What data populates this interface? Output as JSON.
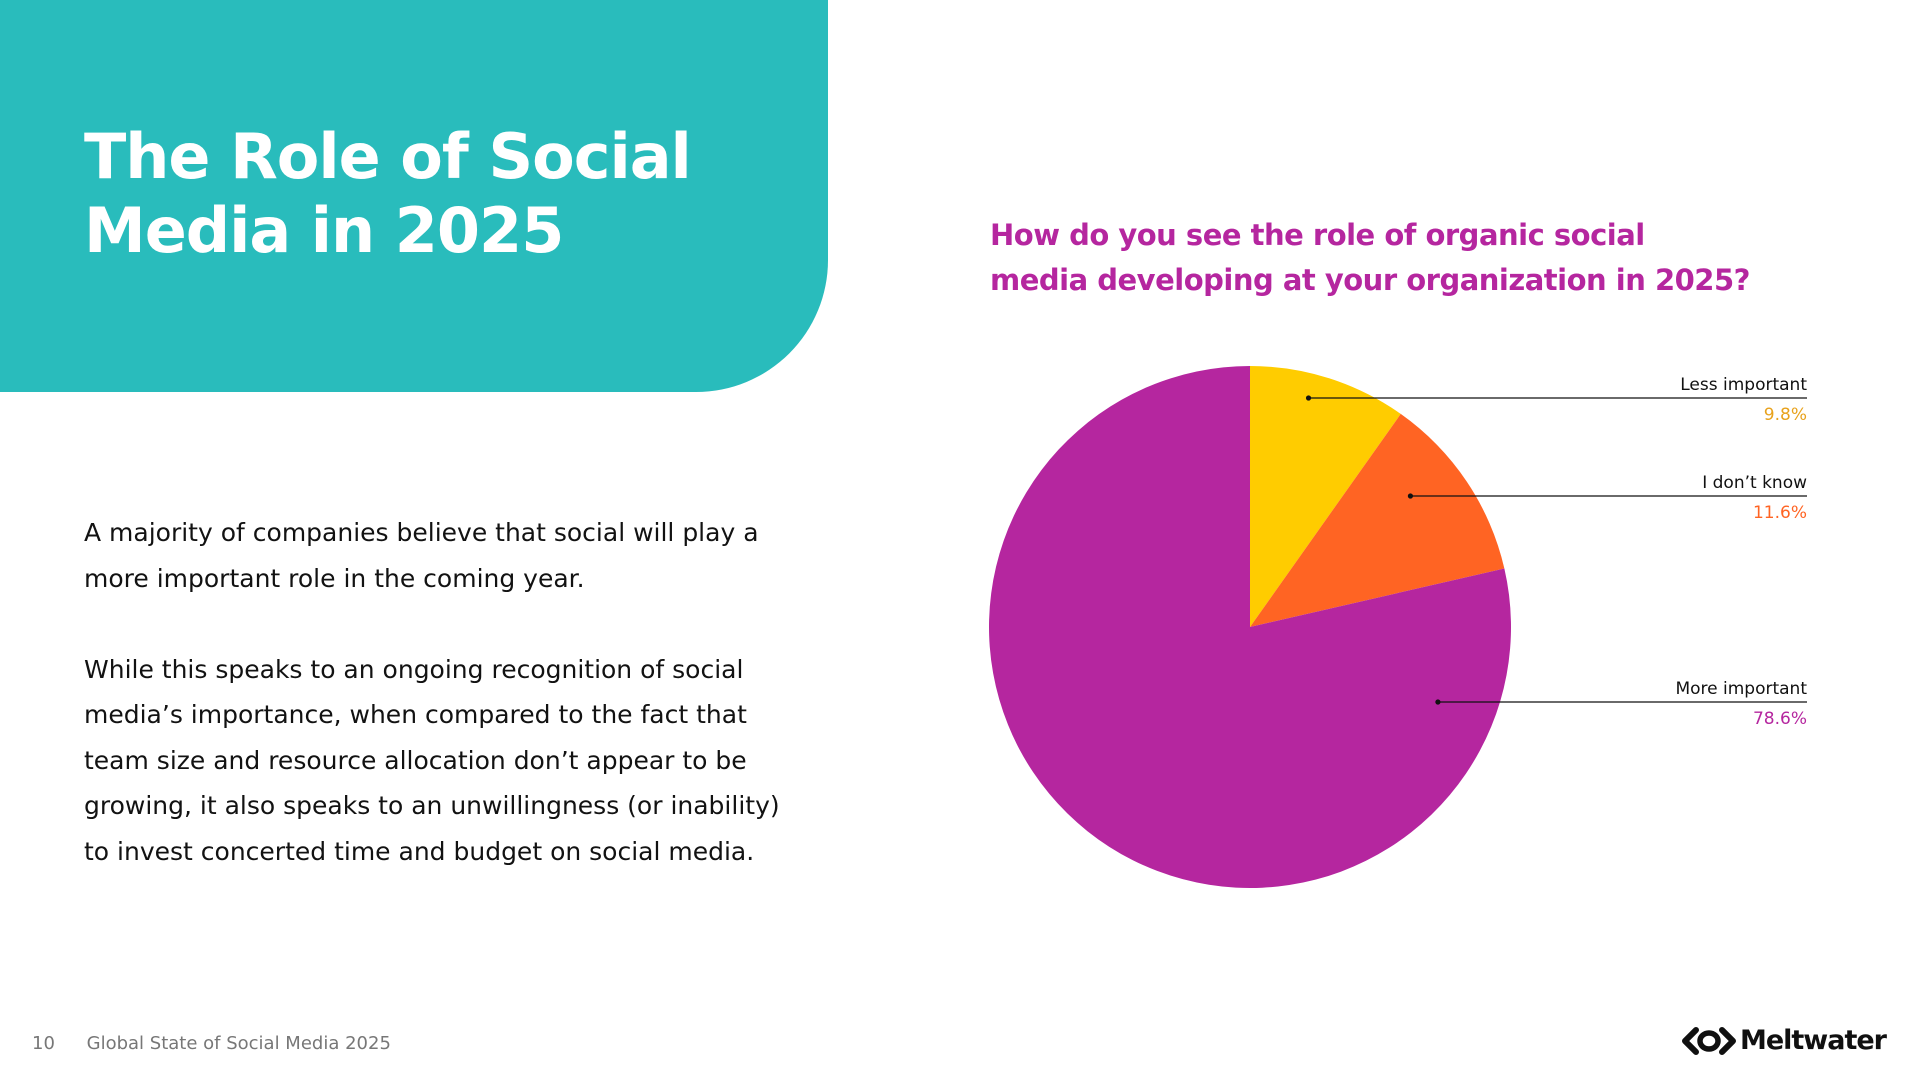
{
  "header": {
    "title": "The Role of Social Media in 2025"
  },
  "body": {
    "paragraph_1": "A majority of companies believe that social will play a more important role in the coming year.",
    "paragraph_2": "While this speaks to an ongoing recognition of social media’s importance, when compared to the fact that team size and resource allocation don’t appear to be growing, it also speaks to an unwillingness (or inability) to invest concerted time and budget on social media."
  },
  "footer": {
    "page_number": "10",
    "report_title": "Global State of Social Media 2025"
  },
  "brand": {
    "logo_text": "Meltwater",
    "logo_icon": "meltwater-logo-icon"
  },
  "colors": {
    "teal": "#29BCBC",
    "magenta": "#B5269F",
    "yellow": "#FFCC00",
    "orange": "#FF6423",
    "label_yellow": "#E8A21C"
  },
  "chart_data": {
    "type": "pie",
    "title": "How do you see the role of organic social media developing at your organization in 2025?",
    "start_angle_deg": 0,
    "direction": "clockwise",
    "slices": [
      {
        "label": "Less important",
        "value": 9.8,
        "display": "9.8%",
        "color": "#FFCC00",
        "value_color": "#E8A21C"
      },
      {
        "label": "I don’t know",
        "value": 11.6,
        "display": "11.6%",
        "color": "#FF6423",
        "value_color": "#FF6423"
      },
      {
        "label": "More important",
        "value": 78.6,
        "display": "78.6%",
        "color": "#B5269F",
        "value_color": "#B5269F"
      }
    ],
    "legend": "callouts-right"
  }
}
